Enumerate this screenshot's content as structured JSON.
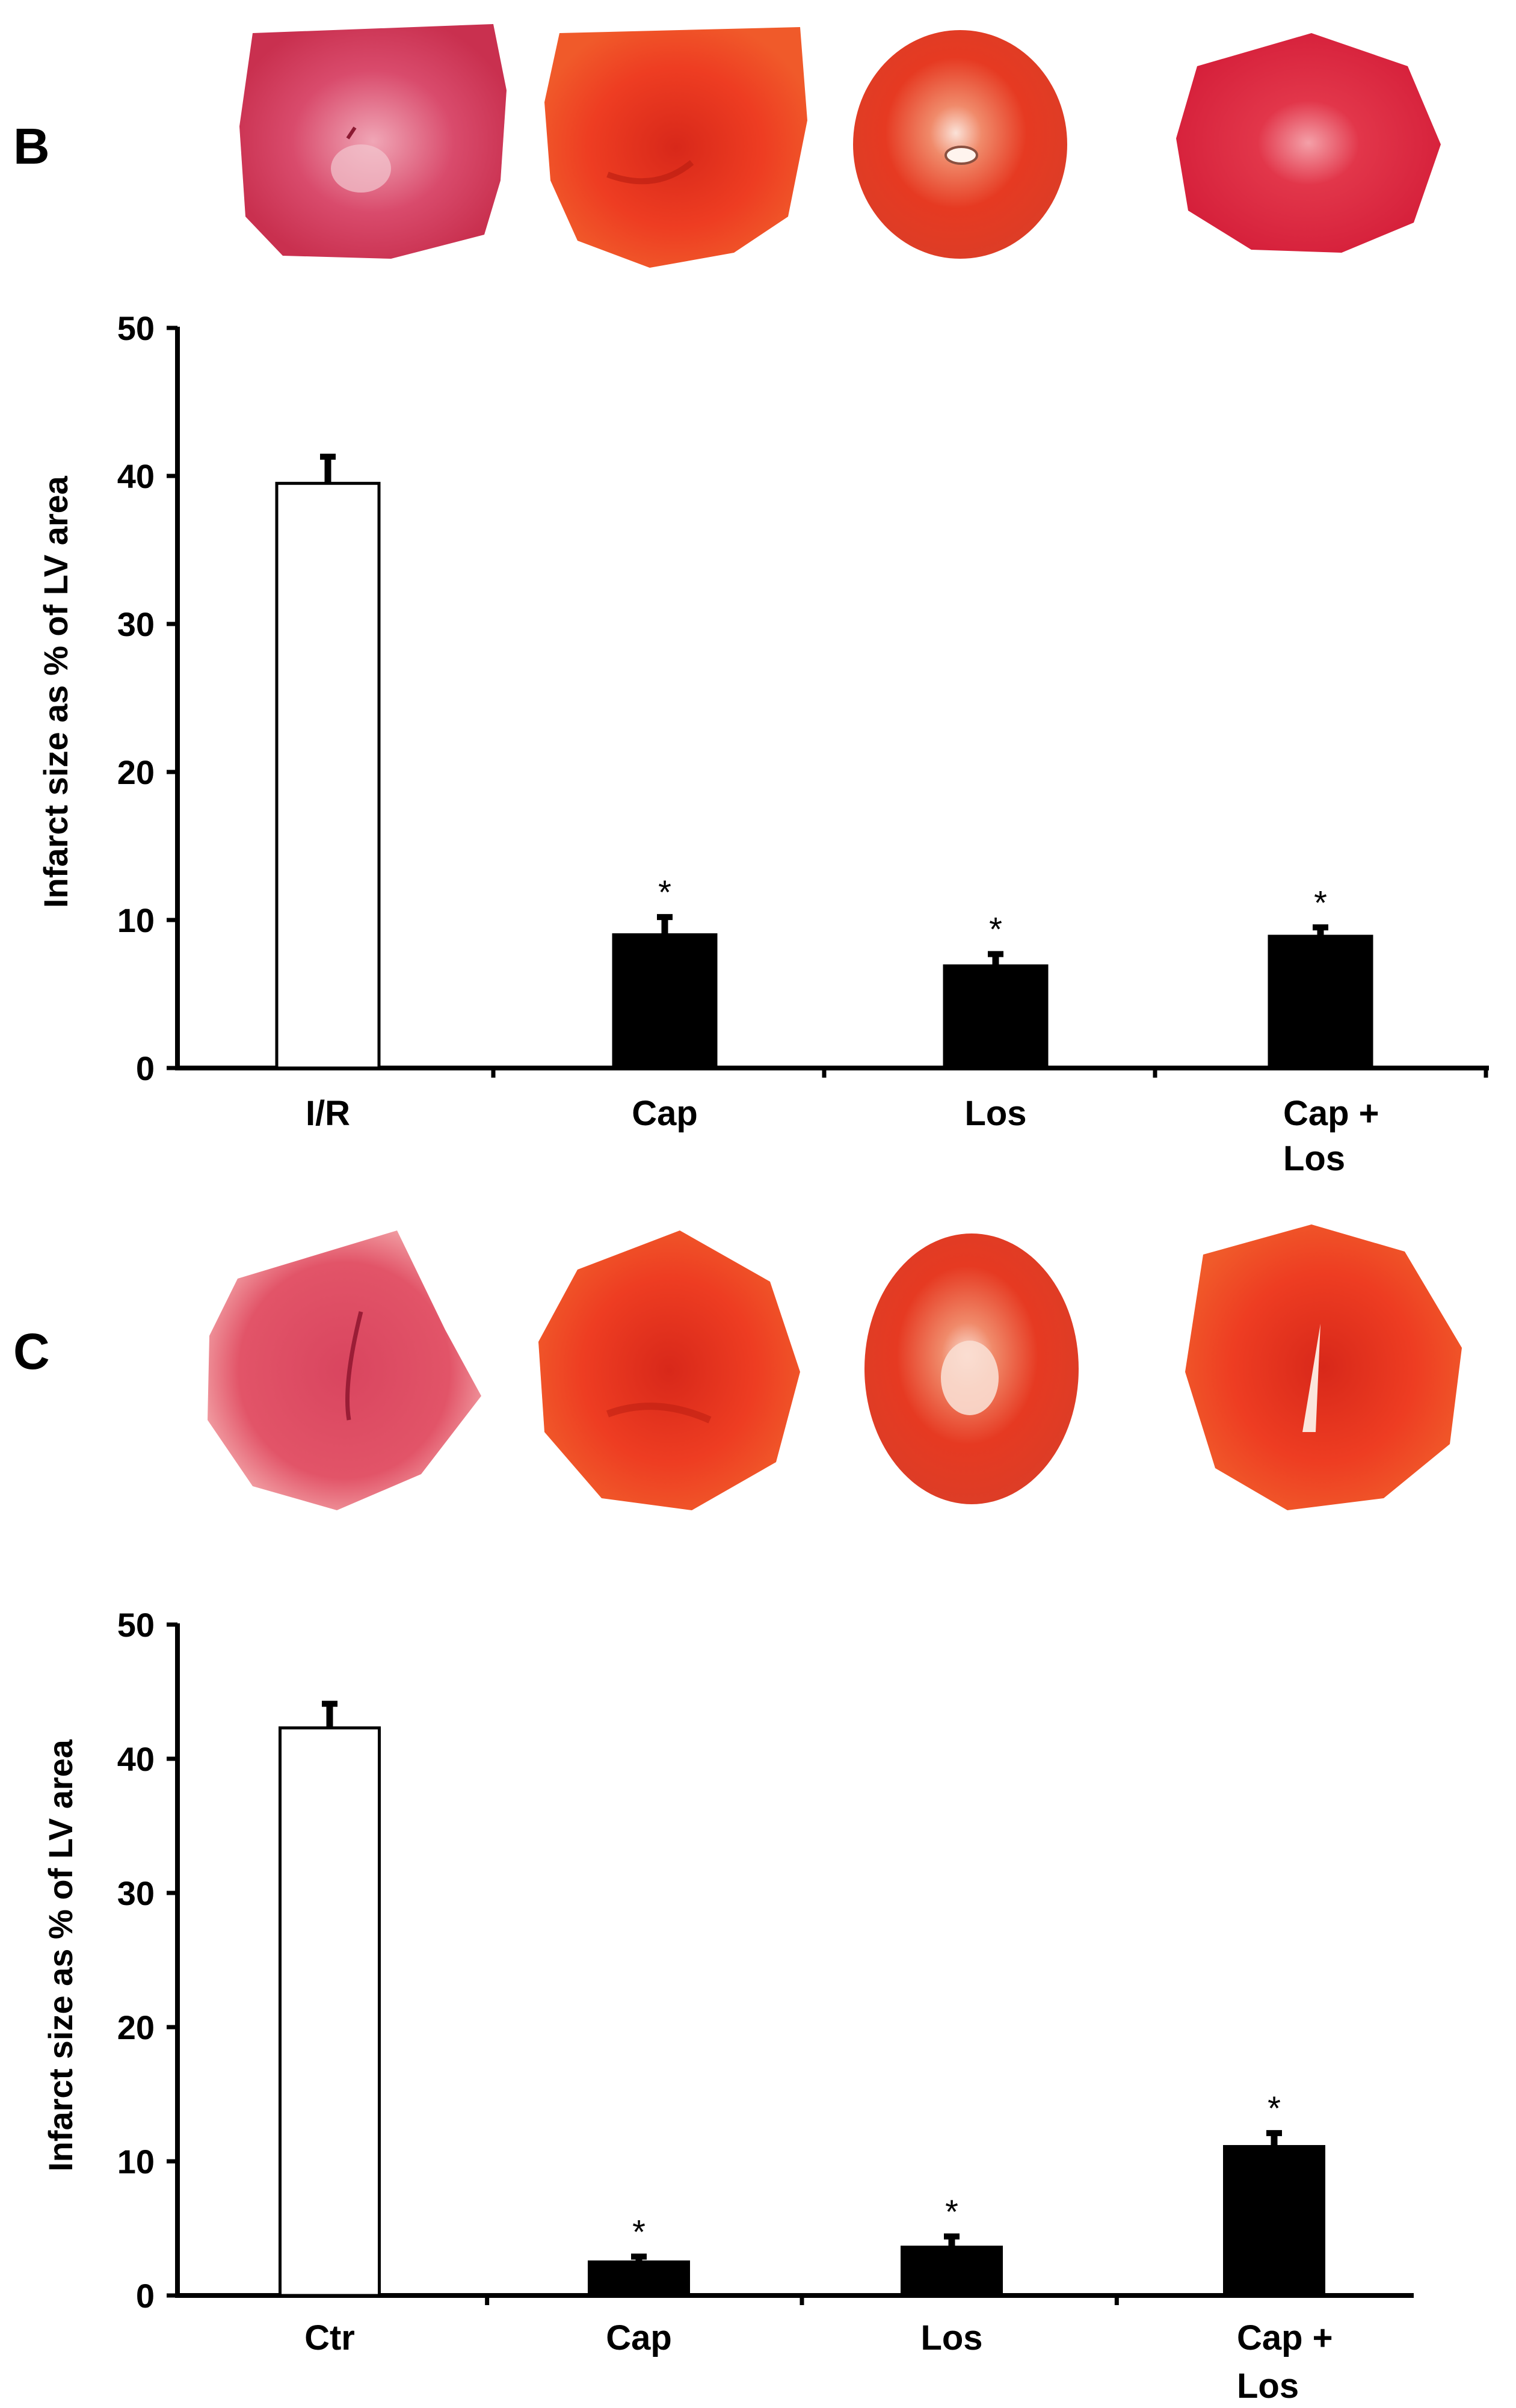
{
  "panels": [
    {
      "letter": "B",
      "heart_images": [
        "heart-slice-ir",
        "heart-slice-cap",
        "heart-slice-los",
        "heart-slice-cap-los"
      ]
    },
    {
      "letter": "C",
      "heart_images": [
        "heart-slice-ctr",
        "heart-slice-cap",
        "heart-slice-los",
        "heart-slice-cap-los"
      ]
    }
  ],
  "colors": {
    "control_bar": "#ffffff",
    "treatment_bar": "#000000",
    "tissue_red": "#e8321e",
    "tissue_pink": "#d9475e"
  },
  "chart_data": [
    {
      "type": "bar",
      "panel": "B",
      "title": "",
      "xlabel": "",
      "ylabel": "Infarct size as % of LV area",
      "ylim": [
        0,
        50
      ],
      "yticks": [
        0,
        10,
        20,
        30,
        40,
        50
      ],
      "categories": [
        [
          "I/R"
        ],
        [
          "Cap"
        ],
        [
          "Los"
        ],
        [
          "Cap +",
          "Los"
        ]
      ],
      "values": [
        39.5,
        9.0,
        6.9,
        8.9
      ],
      "errors": [
        1.8,
        1.2,
        0.8,
        0.6
      ],
      "significance": [
        "",
        "*",
        "*",
        "*"
      ],
      "bar_fill": [
        "white",
        "black",
        "black",
        "black"
      ]
    },
    {
      "type": "bar",
      "panel": "C",
      "title": "",
      "xlabel": "",
      "ylabel": "Infarct size as % of LV area",
      "ylim": [
        0,
        50
      ],
      "yticks": [
        0,
        10,
        20,
        30,
        40,
        50
      ],
      "categories": [
        [
          "Ctr"
        ],
        [
          "Cap"
        ],
        [
          "Los"
        ],
        [
          "Cap +",
          "Los"
        ]
      ],
      "values": [
        42.3,
        2.5,
        3.6,
        11.1
      ],
      "errors": [
        1.8,
        0.4,
        0.8,
        1.0
      ],
      "significance": [
        "",
        "*",
        "*",
        "*"
      ],
      "bar_fill": [
        "white",
        "black",
        "black",
        "black"
      ]
    }
  ]
}
